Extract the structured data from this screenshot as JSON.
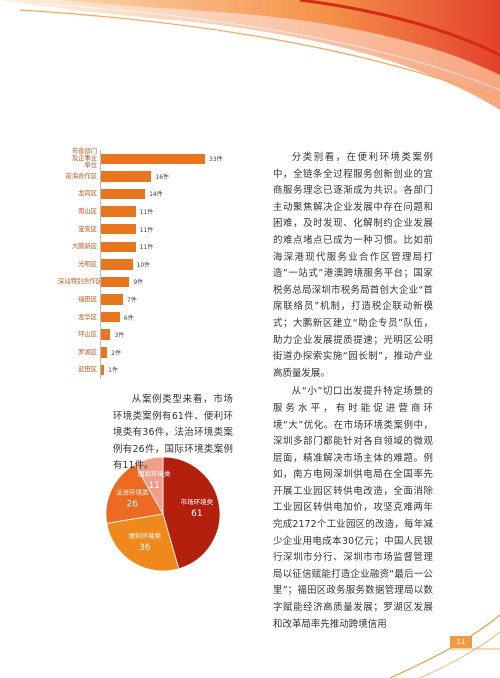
{
  "chart_data": [
    {
      "type": "bar",
      "orientation": "horizontal",
      "color": "#e8761f",
      "categories": [
        "市直部门及企事业单位",
        "前海合作区",
        "龙岗区",
        "南山区",
        "宝安区",
        "大鹏新区",
        "光明区",
        "深汕特别合作区",
        "福田区",
        "龙华区",
        "坪山区",
        "罗湖区",
        "盐田区"
      ],
      "values": [
        33,
        16,
        14,
        11,
        11,
        11,
        10,
        9,
        7,
        6,
        3,
        2,
        1
      ],
      "value_labels": [
        "33件",
        "16件",
        "14件",
        "11件",
        "11件",
        "11件",
        "10件",
        "9件",
        "7件",
        "6件",
        "3件",
        "2件",
        "1件"
      ]
    },
    {
      "type": "pie",
      "categories": [
        "市场环境类",
        "便利环境类",
        "法治环境类",
        "国际环境类"
      ],
      "values": [
        61,
        36,
        26,
        11
      ],
      "colors": [
        "#b3200e",
        "#f0891c",
        "#ec6a22",
        "#f19d8c"
      ]
    }
  ],
  "text": {
    "pie_caption": "从案例类型来看，市场环境类案例有61件、便利环境类有36件，法治环境类案例有26件，国际环境类案例有11件。",
    "paragraphs": [
      "分类别看，在便利环境类案例中，全链条全过程服务创新创业的宜商服务理念已逐渐成为共识。各部门主动聚焦解决企业发展中存在问题和困难，及时发现、化解制约企业发展的难点堵点已成为一种习惯。比如前海深港现代服务业合作区管理局打造“一站式”港澳跨境服务平台；国家税务总局深圳市税务局首创大企业“首席联络员”机制，打造税企联动新模式；大鹏新区建立“助企专员”队伍，助力企业发展提质提速；光明区公明街道办探索实施“园长制”，推动产业高质量发展。",
      "从“小”切口出发提升特定场景的服务水平，有时能促进营商环境“大”优化。在市场环境类案例中，深圳多部门都能针对各自领域的微观层面，精准解决市场主体的难题。例如，南方电网深圳供电局在全国率先开展工业园区转供电改造，全面消除工业园区转供电加价，攻坚克难两年完成2172个工业园区的改造，每年减少企业用电成本30亿元；中国人民银行深圳市分行、深圳市市场监督管理局以征信赋能打造企业融资“最后一公里”；福田区政务服务数据管理局以数字赋能经济高质量发展；罗湖区发展和改革局率先推动跨境信用"
    ],
    "page_number": "11"
  }
}
